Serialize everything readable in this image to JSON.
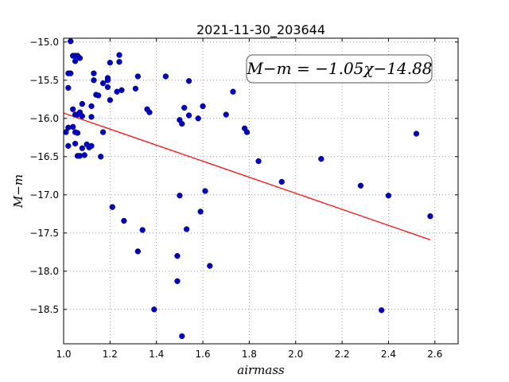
{
  "chart_data": {
    "type": "scatter",
    "title": "2021-11-30_203644",
    "xlabel": "airmass",
    "ylabel": "M−m",
    "xlim": [
      1.0,
      2.7
    ],
    "ylim": [
      -18.95,
      -14.95
    ],
    "y_inverted": true,
    "grid": true,
    "x_ticks": [
      "1.0",
      "1.2",
      "1.4",
      "1.6",
      "1.8",
      "2.0",
      "2.2",
      "2.4",
      "2.6"
    ],
    "x_tick_values": [
      1.0,
      1.2,
      1.4,
      1.6,
      1.8,
      2.0,
      2.2,
      2.4,
      2.6
    ],
    "y_ticks": [
      "−15.0",
      "−15.5",
      "−16.0",
      "−16.5",
      "−17.0",
      "−17.5",
      "−18.0",
      "−18.5"
    ],
    "y_tick_values": [
      -15.0,
      -15.5,
      -16.0,
      -16.5,
      -17.0,
      -17.5,
      -18.0,
      -18.5
    ],
    "annotation": "M−m = −1.05χ−14.88",
    "fit": {
      "slope": -1.05,
      "intercept": -14.88,
      "x_range": [
        1.0,
        2.58
      ],
      "color": "#ff0000"
    },
    "marker_color": "#0000cc",
    "series": [
      {
        "points": [
          [
            1.03,
            -14.99
          ],
          [
            1.04,
            -15.18
          ],
          [
            1.05,
            -15.18
          ],
          [
            1.06,
            -15.18
          ],
          [
            1.07,
            -15.21
          ],
          [
            1.05,
            -15.25
          ],
          [
            1.02,
            -15.41
          ],
          [
            1.03,
            -15.41
          ],
          [
            1.02,
            -15.6
          ],
          [
            1.04,
            -15.88
          ],
          [
            1.05,
            -15.95
          ],
          [
            1.06,
            -15.95
          ],
          [
            1.08,
            -15.81
          ],
          [
            1.07,
            -15.92
          ],
          [
            1.08,
            -15.97
          ],
          [
            1.04,
            -16.11
          ],
          [
            1.02,
            -16.12
          ],
          [
            1.01,
            -16.18
          ],
          [
            1.05,
            -16.18
          ],
          [
            1.06,
            -16.19
          ],
          [
            1.02,
            -16.36
          ],
          [
            1.05,
            -16.33
          ],
          [
            1.08,
            -16.39
          ],
          [
            1.1,
            -16.34
          ],
          [
            1.11,
            -16.38
          ],
          [
            1.12,
            -16.36
          ],
          [
            1.06,
            -16.49
          ],
          [
            1.07,
            -16.49
          ],
          [
            1.09,
            -16.48
          ],
          [
            1.13,
            -15.41
          ],
          [
            1.13,
            -15.5
          ],
          [
            1.14,
            -15.69
          ],
          [
            1.15,
            -15.7
          ],
          [
            1.17,
            -15.54
          ],
          [
            1.19,
            -15.47
          ],
          [
            1.19,
            -15.5
          ],
          [
            1.2,
            -15.27
          ],
          [
            1.19,
            -15.59
          ],
          [
            1.2,
            -15.76
          ],
          [
            1.12,
            -15.84
          ],
          [
            1.12,
            -15.98
          ],
          [
            1.16,
            -16.5
          ],
          [
            1.17,
            -16.18
          ],
          [
            1.21,
            -17.16
          ],
          [
            1.23,
            -15.65
          ],
          [
            1.24,
            -15.17
          ],
          [
            1.24,
            -15.26
          ],
          [
            1.25,
            -15.63
          ],
          [
            1.26,
            -17.34
          ],
          [
            1.31,
            -15.61
          ],
          [
            1.32,
            -15.45
          ],
          [
            1.32,
            -17.74
          ],
          [
            1.34,
            -17.46
          ],
          [
            1.36,
            -15.88
          ],
          [
            1.37,
            -15.92
          ],
          [
            1.39,
            -18.5
          ],
          [
            1.44,
            -15.45
          ],
          [
            1.49,
            -17.8
          ],
          [
            1.49,
            -18.13
          ],
          [
            1.5,
            -16.02
          ],
          [
            1.5,
            -17.01
          ],
          [
            1.51,
            -16.07
          ],
          [
            1.51,
            -18.85
          ],
          [
            1.52,
            -15.86
          ],
          [
            1.53,
            -17.45
          ],
          [
            1.54,
            -15.96
          ],
          [
            1.54,
            -15.51
          ],
          [
            1.58,
            -16.0
          ],
          [
            1.59,
            -17.22
          ],
          [
            1.6,
            -15.84
          ],
          [
            1.61,
            -16.95
          ],
          [
            1.63,
            -17.93
          ],
          [
            1.7,
            -15.95
          ],
          [
            1.73,
            -15.65
          ],
          [
            1.78,
            -16.13
          ],
          [
            1.79,
            -16.18
          ],
          [
            1.84,
            -16.56
          ],
          [
            1.94,
            -16.83
          ],
          [
            2.11,
            -16.53
          ],
          [
            2.28,
            -16.88
          ],
          [
            2.37,
            -18.51
          ],
          [
            2.4,
            -17.01
          ],
          [
            2.52,
            -16.2
          ],
          [
            2.58,
            -17.28
          ]
        ]
      }
    ]
  }
}
